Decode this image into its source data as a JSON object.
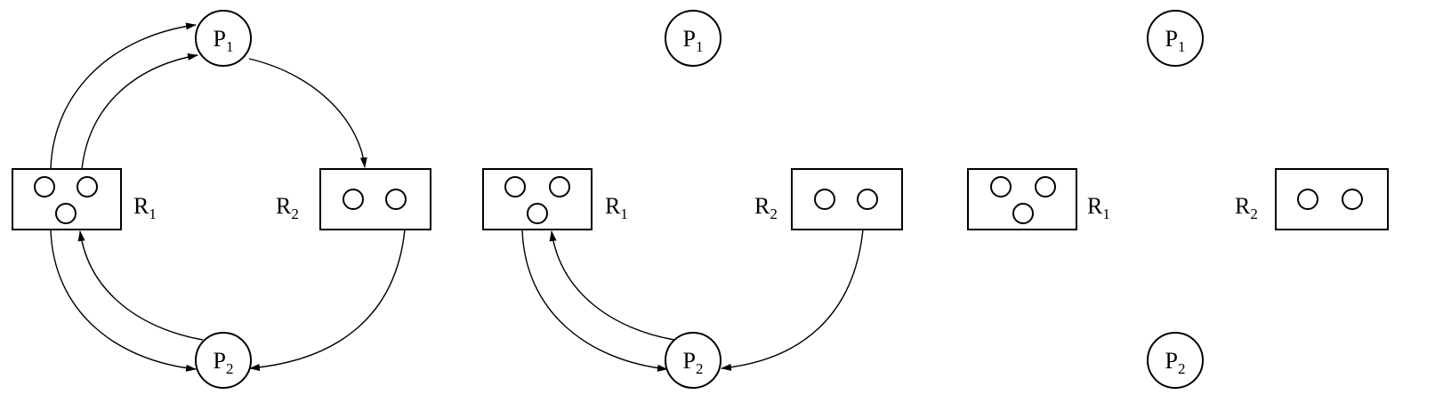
{
  "panels": [
    {
      "processes": [
        {
          "main": "P",
          "sub": "1"
        },
        {
          "main": "P",
          "sub": "2"
        }
      ],
      "resources": [
        {
          "main": "R",
          "sub": "1",
          "units": 3
        },
        {
          "main": "R",
          "sub": "2",
          "units": 2
        }
      ],
      "edges": [
        {
          "from": "R1",
          "to": "P1",
          "kind": "assignment"
        },
        {
          "from": "R1",
          "to": "P1",
          "kind": "assignment"
        },
        {
          "from": "P1",
          "to": "R2",
          "kind": "request"
        },
        {
          "from": "R1",
          "to": "P2",
          "kind": "assignment"
        },
        {
          "from": "P2",
          "to": "R1",
          "kind": "request"
        },
        {
          "from": "R2",
          "to": "P2",
          "kind": "assignment"
        }
      ]
    },
    {
      "processes": [
        {
          "main": "P",
          "sub": "1"
        },
        {
          "main": "P",
          "sub": "2"
        }
      ],
      "resources": [
        {
          "main": "R",
          "sub": "1",
          "units": 3
        },
        {
          "main": "R",
          "sub": "2",
          "units": 2
        }
      ],
      "edges": [
        {
          "from": "R1",
          "to": "P2",
          "kind": "assignment"
        },
        {
          "from": "P2",
          "to": "R1",
          "kind": "request"
        },
        {
          "from": "R2",
          "to": "P2",
          "kind": "assignment"
        }
      ]
    },
    {
      "processes": [
        {
          "main": "P",
          "sub": "1"
        },
        {
          "main": "P",
          "sub": "2"
        }
      ],
      "resources": [
        {
          "main": "R",
          "sub": "1",
          "units": 3
        },
        {
          "main": "R",
          "sub": "2",
          "units": 2
        }
      ],
      "edges": []
    }
  ]
}
